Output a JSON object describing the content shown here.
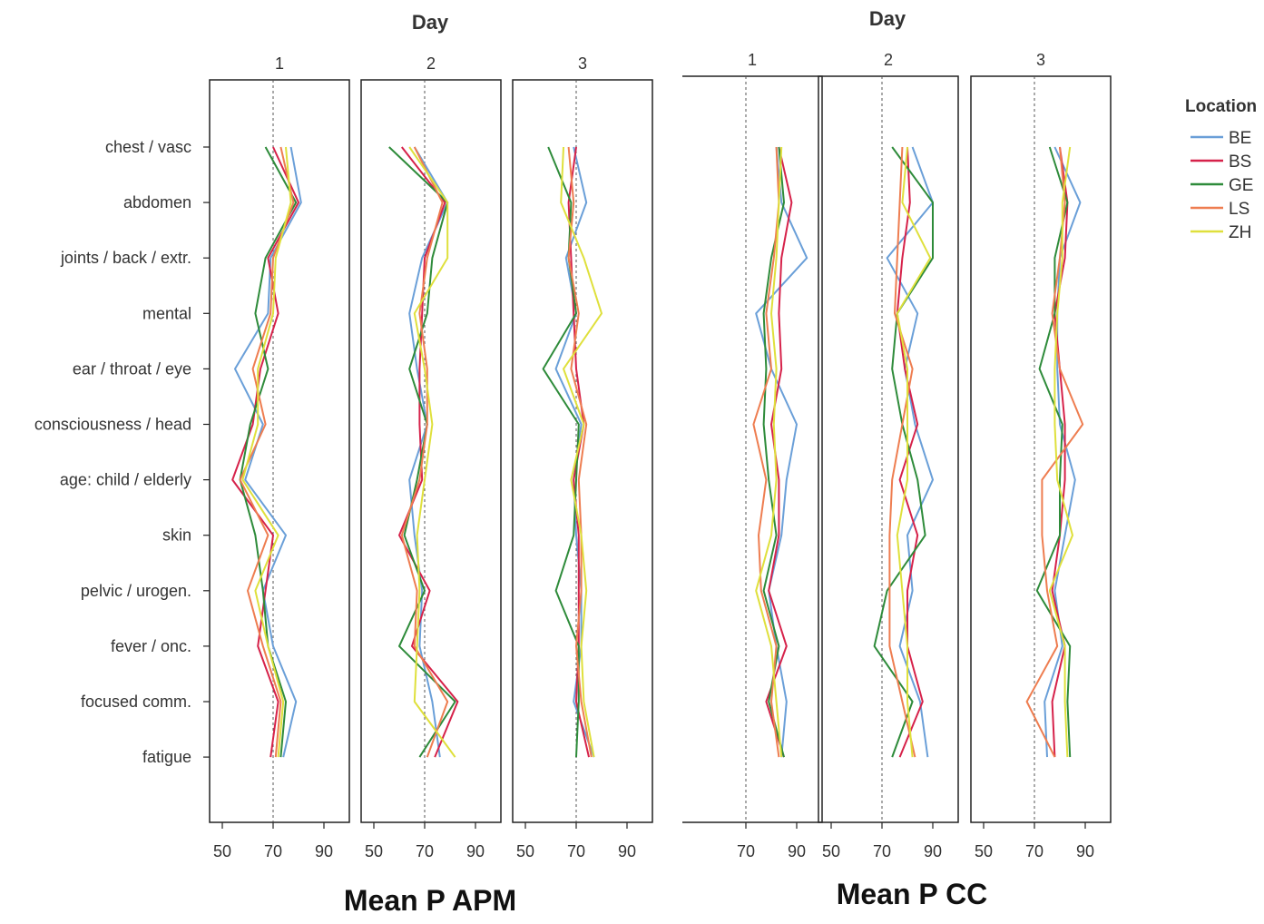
{
  "chart_data": {
    "type": "line",
    "categories": [
      "chest / vasc",
      "abdomen",
      "joints / back / extr.",
      "mental",
      "ear / throat /  eye",
      "consciousness / head",
      "age: child / elderly",
      "skin",
      "pelvic / urogen.",
      "fever / onc.",
      "focused comm.",
      "fatigue"
    ],
    "xlim": [
      45,
      100
    ],
    "x_ticks": [
      50,
      70,
      90
    ],
    "reference_line": 70,
    "legend": {
      "title": "Location",
      "placement": "right",
      "entries": [
        {
          "name": "BE",
          "color": "#6a9fd8"
        },
        {
          "name": "BS",
          "color": "#d6224a"
        },
        {
          "name": "GE",
          "color": "#2e8b3a"
        },
        {
          "name": "LS",
          "color": "#ee7d50"
        },
        {
          "name": "ZH",
          "color": "#dfe03c"
        }
      ]
    },
    "groups": [
      {
        "title": "Mean P APM",
        "strip_title": "Day",
        "panels": [
          {
            "day": "1",
            "series": [
              {
                "name": "BE",
                "values": [
                  77,
                  81,
                  69,
                  68,
                  55,
                  66,
                  59,
                  75,
                  66,
                  70,
                  79,
                  74
                ]
              },
              {
                "name": "BS",
                "values": [
                  70,
                  80,
                  68,
                  72,
                  65,
                  62,
                  54,
                  70,
                  67,
                  64,
                  72,
                  69
                ]
              },
              {
                "name": "GE",
                "values": [
                  67,
                  79,
                  67,
                  63,
                  68,
                  61,
                  57,
                  63,
                  66,
                  68,
                  75,
                  73
                ]
              },
              {
                "name": "LS",
                "values": [
                  73,
                  78,
                  70,
                  69,
                  62,
                  67,
                  57,
                  68,
                  60,
                  66,
                  73,
                  71
                ]
              },
              {
                "name": "ZH",
                "values": [
                  75,
                  77,
                  71,
                  70,
                  64,
                  64,
                  58,
                  72,
                  63,
                  68,
                  74,
                  72
                ]
              }
            ]
          },
          {
            "day": "2",
            "series": [
              {
                "name": "BE",
                "values": [
                  66,
                  79,
                  69,
                  64,
                  67,
                  71,
                  64,
                  66,
                  69,
                  68,
                  73,
                  76
                ]
              },
              {
                "name": "BS",
                "values": [
                  61,
                  78,
                  70,
                  69,
                  68,
                  68,
                  69,
                  60,
                  72,
                  65,
                  83,
                  74
                ]
              },
              {
                "name": "GE",
                "values": [
                  56,
                  79,
                  73,
                  71,
                  64,
                  71,
                  67,
                  62,
                  70,
                  60,
                  82,
                  68
                ]
              },
              {
                "name": "LS",
                "values": [
                  66,
                  77,
                  71,
                  68,
                  71,
                  71,
                  68,
                  61,
                  67,
                  66,
                  79,
                  71
                ]
              },
              {
                "name": "ZH",
                "values": [
                  64,
                  79,
                  79,
                  66,
                  70,
                  73,
                  70,
                  67,
                  68,
                  67,
                  66,
                  82
                ]
              }
            ]
          },
          {
            "day": "3",
            "series": [
              {
                "name": "BE",
                "values": [
                  69,
                  74,
                  66,
                  70,
                  62,
                  72,
                  69,
                  70,
                  72,
                  72,
                  69,
                  77
                ]
              },
              {
                "name": "BS",
                "values": [
                  70,
                  67,
                  68,
                  69,
                  70,
                  73,
                  69,
                  71,
                  71,
                  71,
                  70,
                  75
                ]
              },
              {
                "name": "GE",
                "values": [
                  59,
                  68,
                  67,
                  70,
                  57,
                  71,
                  70,
                  69,
                  62,
                  71,
                  71,
                  70
                ]
              },
              {
                "name": "LS",
                "values": [
                  67,
                  69,
                  67,
                  71,
                  68,
                  74,
                  71,
                  72,
                  72,
                  70,
                  72,
                  76
                ]
              },
              {
                "name": "ZH",
                "values": [
                  65,
                  64,
                  73,
                  80,
                  65,
                  73,
                  68,
                  72,
                  74,
                  72,
                  73,
                  77
                ]
              }
            ]
          }
        ]
      },
      {
        "title": "Mean P CC",
        "strip_title": "Day",
        "panels": [
          {
            "day": "1",
            "series": [
              {
                "name": "BE",
                "values": [
                  82,
                  84,
                  94,
                  74,
                  80,
                  90,
                  86,
                  84,
                  79,
                  82,
                  86,
                  84
                ]
              },
              {
                "name": "BS",
                "values": [
                  83,
                  88,
                  84,
                  83,
                  84,
                  80,
                  83,
                  83,
                  79,
                  86,
                  78,
                  85
                ]
              },
              {
                "name": "GE",
                "values": [
                  83,
                  85,
                  80,
                  77,
                  78,
                  77,
                  79,
                  82,
                  77,
                  83,
                  79,
                  85
                ]
              },
              {
                "name": "LS",
                "values": [
                  82,
                  83,
                  81,
                  78,
                  80,
                  73,
                  78,
                  75,
                  76,
                  82,
                  80,
                  83
                ]
              },
              {
                "name": "ZH",
                "values": [
                  84,
                  83,
                  82,
                  80,
                  82,
                  81,
                  82,
                  80,
                  74,
                  80,
                  82,
                  84
                ]
              }
            ]
          },
          {
            "day": "2",
            "series": [
              {
                "name": "BE",
                "values": [
                  82,
                  90,
                  72,
                  84,
                  79,
                  83,
                  90,
                  80,
                  82,
                  77,
                  85,
                  88
                ]
              },
              {
                "name": "BS",
                "values": [
                  80,
                  81,
                  78,
                  76,
                  79,
                  84,
                  77,
                  84,
                  80,
                  80,
                  86,
                  77
                ]
              },
              {
                "name": "GE",
                "values": [
                  74,
                  90,
                  90,
                  76,
                  74,
                  78,
                  84,
                  87,
                  72,
                  67,
                  82,
                  74
                ]
              },
              {
                "name": "LS",
                "values": [
                  78,
                  77,
                  76,
                  75,
                  82,
                  78,
                  74,
                  73,
                  73,
                  73,
                  78,
                  83
                ]
              },
              {
                "name": "ZH",
                "values": [
                  80,
                  78,
                  89,
                  76,
                  80,
                  80,
                  80,
                  76,
                  78,
                  80,
                  80,
                  82
                ]
              }
            ]
          },
          {
            "day": "3",
            "series": [
              {
                "name": "BE",
                "values": [
                  78,
                  88,
                  80,
                  79,
                  79,
                  80,
                  86,
                  82,
                  78,
                  81,
                  74,
                  75
                ]
              },
              {
                "name": "BS",
                "values": [
                  80,
                  83,
                  82,
                  78,
                  80,
                  82,
                  82,
                  80,
                  77,
                  82,
                  77,
                  78
                ]
              },
              {
                "name": "GE",
                "values": [
                  76,
                  83,
                  78,
                  78,
                  72,
                  81,
                  80,
                  80,
                  71,
                  84,
                  83,
                  84
                ]
              },
              {
                "name": "LS",
                "values": [
                  80,
                  82,
                  80,
                  77,
                  80,
                  89,
                  73,
                  73,
                  75,
                  79,
                  67,
                  78
                ]
              },
              {
                "name": "ZH",
                "values": [
                  84,
                  81,
                  81,
                  79,
                  78,
                  78,
                  79,
                  85,
                  76,
                  82,
                  82,
                  83
                ]
              }
            ]
          }
        ]
      }
    ]
  }
}
